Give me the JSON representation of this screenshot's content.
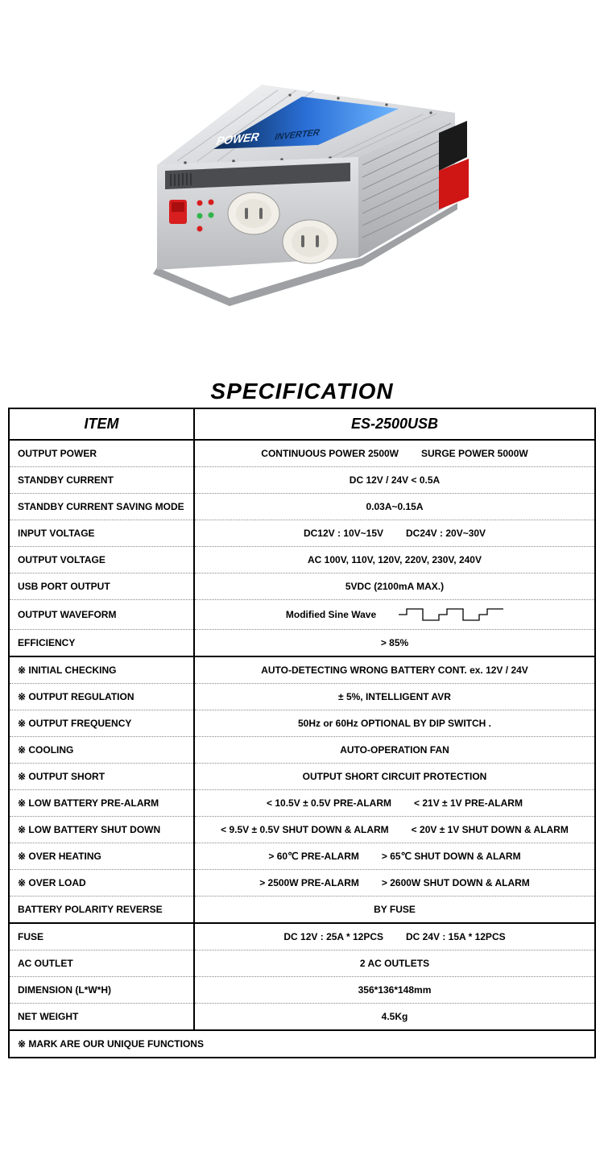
{
  "title": "SPECIFICATION",
  "header": {
    "item": "ITEM",
    "model": "ES-2500USB"
  },
  "rows": [
    {
      "label": "OUTPUT POWER",
      "parts": [
        "CONTINUOUS POWER 2500W",
        "SURGE POWER 5000W"
      ],
      "group_top": true
    },
    {
      "label": "STANDBY CURRENT",
      "value": "DC 12V / 24V < 0.5A"
    },
    {
      "label": "STANDBY CURRENT SAVING MODE",
      "value": "0.03A~0.15A"
    },
    {
      "label": "INPUT VOLTAGE",
      "parts": [
        "DC12V : 10V~15V",
        "DC24V : 20V~30V"
      ]
    },
    {
      "label": "OUTPUT VOLTAGE",
      "value": "AC 100V, 110V, 120V, 220V, 230V, 240V"
    },
    {
      "label": "USB PORT OUTPUT",
      "value": "5VDC (2100mA MAX.)"
    },
    {
      "label": "OUTPUT WAVEFORM",
      "value": "Modified Sine Wave",
      "waveform": true
    },
    {
      "label": "EFFICIENCY",
      "value": "> 85%",
      "group_bottom": true
    },
    {
      "label": "※ INITIAL CHECKING",
      "value": "AUTO-DETECTING WRONG BATTERY CONT. ex. 12V / 24V",
      "group_top": true
    },
    {
      "label": "※ OUTPUT REGULATION",
      "value": "± 5%, INTELLIGENT AVR"
    },
    {
      "label": "※ OUTPUT FREQUENCY",
      "value": "50Hz or 60Hz OPTIONAL BY DIP SWITCH ."
    },
    {
      "label": "※ COOLING",
      "value": "AUTO-OPERATION FAN"
    },
    {
      "label": "※ OUTPUT SHORT",
      "value": "OUTPUT SHORT CIRCUIT PROTECTION"
    },
    {
      "label": "※ LOW BATTERY PRE-ALARM",
      "parts": [
        "< 10.5V ± 0.5V PRE-ALARM",
        "< 21V ± 1V PRE-ALARM"
      ]
    },
    {
      "label": "※ LOW BATTERY SHUT DOWN",
      "parts": [
        "< 9.5V ± 0.5V SHUT DOWN & ALARM",
        "< 20V ± 1V SHUT DOWN & ALARM"
      ]
    },
    {
      "label": "※ OVER HEATING",
      "parts": [
        "> 60℃ PRE-ALARM",
        "> 65℃ SHUT DOWN & ALARM"
      ]
    },
    {
      "label": "※ OVER LOAD",
      "parts": [
        "> 2500W PRE-ALARM",
        "> 2600W SHUT DOWN & ALARM"
      ]
    },
    {
      "label": "BATTERY POLARITY REVERSE",
      "value": "BY FUSE",
      "group_bottom": true
    },
    {
      "label": "FUSE",
      "parts": [
        "DC 12V : 25A * 12PCS",
        "DC 24V : 15A * 12PCS"
      ],
      "group_top": true
    },
    {
      "label": "AC OUTLET",
      "value": "2 AC OUTLETS"
    },
    {
      "label": "DIMENSION (L*W*H)",
      "value": "356*136*148mm"
    },
    {
      "label": "NET WEIGHT",
      "value": "4.5Kg",
      "group_bottom": true
    }
  ],
  "footnote": "※ MARK ARE OUR UNIQUE FUNCTIONS",
  "colors": {
    "body_top": "#eceef0",
    "body_side": "#c8cace",
    "body_front": "#d6d8db",
    "label_blue": "#2a6fd6",
    "label_dark": "#0b2a55",
    "switch_red": "#d81e1e",
    "outlet": "#f2efe8",
    "black_terminal": "#1a1a1a",
    "red_terminal": "#d01515",
    "led_green": "#2fb54a",
    "led_red": "#d81e1e"
  }
}
